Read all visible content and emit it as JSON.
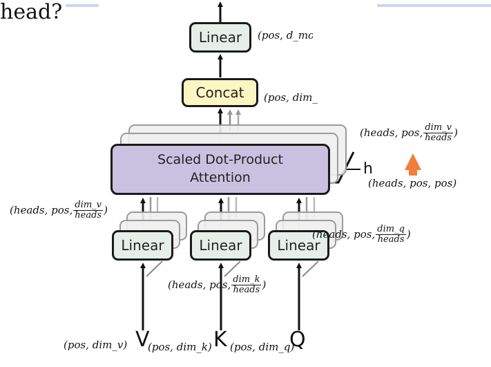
{
  "slide": {
    "title_fragment": "head?",
    "accent_color": "#c7d7f0"
  },
  "diagram": {
    "boxes": {
      "linear_top": "Linear",
      "concat": "Concat",
      "sdpa_line1": "Scaled Dot-Product",
      "sdpa_line2": "Attention",
      "linear_v": "Linear",
      "linear_k": "Linear",
      "linear_q": "Linear"
    },
    "inputs": {
      "v": "V",
      "k": "K",
      "q": "Q"
    },
    "head_count_label": "h",
    "colors": {
      "linear_fill": "#e7eeea",
      "concat_fill": "#fdf5c2",
      "attention_fill": "#c9c1e0",
      "marker_arrow": "#f07f3c"
    },
    "annotations": {
      "output_shape": "(pos, d_mo",
      "concat_shape": "(pos, dim_",
      "heads_v_right_prefix": "(heads, pos,",
      "heads_v_right_num": "dim_v",
      "heads_v_right_den": "heads",
      "heads_v_right_suffix": ")",
      "attention_shape": "(heads, pos, pos)",
      "left_prefix": "(heads, pos,",
      "left_num": "dim_v",
      "left_den": "heads",
      "left_suffix": ")",
      "q_prefix": "(heads, pos,",
      "q_num": "dim_q",
      "q_den": "heads",
      "q_suffix": ")",
      "k_prefix": "(heads, pos,",
      "k_num": "dim_k",
      "k_den": "heads",
      "k_suffix": ")",
      "v_input_shape": "(pos, dim_v)",
      "k_input_shape": "(pos, dim_k)",
      "q_input_shape": "(pos, dim_q)"
    },
    "marker_icon": "orange-up-arrow-icon"
  }
}
